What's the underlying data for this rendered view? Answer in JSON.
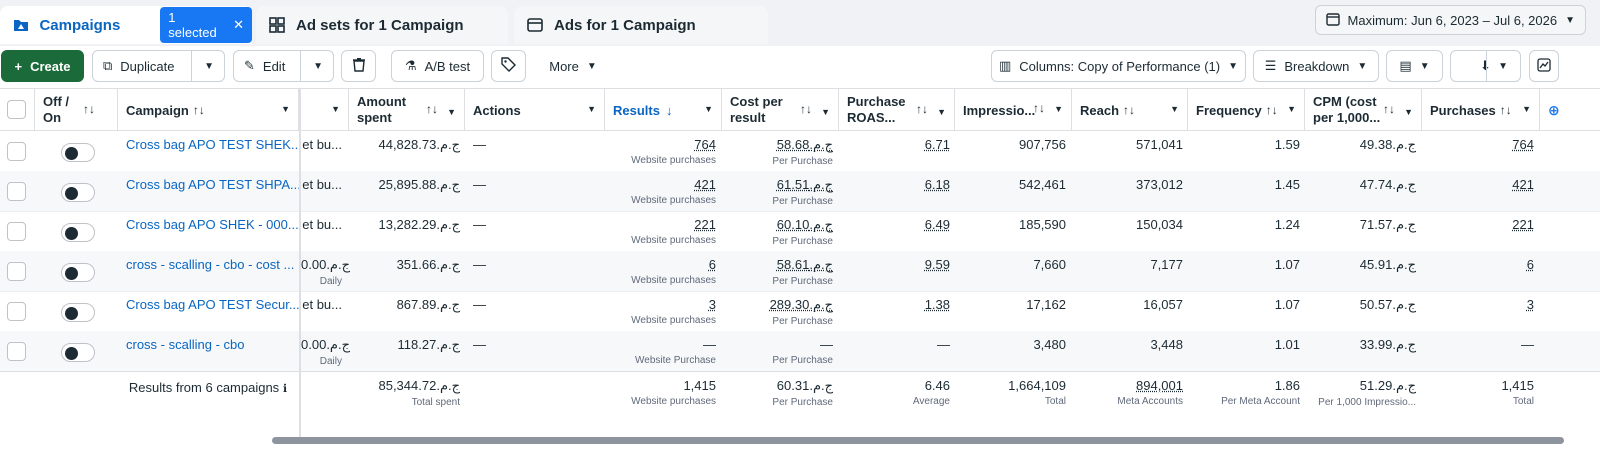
{
  "tabs": {
    "campaigns": "Campaigns",
    "selected": "1 selected",
    "adsets": "Ad sets for 1 Campaign",
    "ads": "Ads for 1 Campaign"
  },
  "date_range": "Maximum: Jun 6, 2023 – Jul 6, 2026",
  "toolbar": {
    "create": "Create",
    "duplicate": "Duplicate",
    "edit": "Edit",
    "ab_test": "A/B test",
    "more": "More",
    "columns": "Columns: Copy of Performance (1)",
    "breakdown": "Breakdown"
  },
  "headers": {
    "off_on": "Off / On",
    "campaign": "Campaign",
    "amount_spent": "Amount spent",
    "actions": "Actions",
    "results": "Results",
    "cost_per_result": "Cost per result",
    "purchase_roas": "Purchase ROAS...",
    "impressions": "Impressio...",
    "reach": "Reach",
    "frequency": "Frequency",
    "cpm": "CPM (cost per 1,000...",
    "purchases": "Purchases"
  },
  "rows": [
    {
      "campaign": "Cross bag APO TEST SHEK...",
      "budget": "et bu...",
      "budget_sub": "",
      "amount": "ج.م.‏44,828.73",
      "actions": "—",
      "results": "764",
      "results_sub": "Website purchases",
      "cpr": "ج.م.‏58.68",
      "cpr_sub": "Per Purchase",
      "roas": "6.71",
      "impressions": "907,756",
      "reach": "571,041",
      "frequency": "1.59",
      "cpm": "ج.م.‏49.38",
      "purchases": "764"
    },
    {
      "campaign": "Cross bag APO TEST SHPA...",
      "budget": "et bu...",
      "budget_sub": "",
      "amount": "ج.م.‏25,895.88",
      "actions": "—",
      "results": "421",
      "results_sub": "Website purchases",
      "cpr": "ج.م.‏61.51",
      "cpr_sub": "Per Purchase",
      "roas": "6.18",
      "impressions": "542,461",
      "reach": "373,012",
      "frequency": "1.45",
      "cpm": "ج.م.‏47.74",
      "purchases": "421"
    },
    {
      "campaign": "Cross bag APO SHEK - 000...",
      "budget": "et bu...",
      "budget_sub": "",
      "amount": "ج.م.‏13,282.29",
      "actions": "—",
      "results": "221",
      "results_sub": "Website purchases",
      "cpr": "ج.م.‏60.10",
      "cpr_sub": "Per Purchase",
      "roas": "6.49",
      "impressions": "185,590",
      "reach": "150,034",
      "frequency": "1.24",
      "cpm": "ج.م.‏71.57",
      "purchases": "221"
    },
    {
      "campaign": "cross - scalling - cbo - cost ...",
      "budget": "ج.م.‏0.00",
      "budget_sub": "Daily",
      "amount": "ج.م.‏351.66",
      "actions": "—",
      "results": "6",
      "results_sub": "Website purchases",
      "cpr": "ج.م.‏58.61",
      "cpr_sub": "Per Purchase",
      "roas": "9.59",
      "impressions": "7,660",
      "reach": "7,177",
      "frequency": "1.07",
      "cpm": "ج.م.‏45.91",
      "purchases": "6"
    },
    {
      "campaign": "Cross bag APO TEST Secur...",
      "budget": "et bu...",
      "budget_sub": "",
      "amount": "ج.م.‏867.89",
      "actions": "—",
      "results": "3",
      "results_sub": "Website purchases",
      "cpr": "ج.م.‏289.30",
      "cpr_sub": "Per Purchase",
      "roas": "1.38",
      "impressions": "17,162",
      "reach": "16,057",
      "frequency": "1.07",
      "cpm": "ج.م.‏50.57",
      "purchases": "3"
    },
    {
      "campaign": "cross - scalling - cbo",
      "budget": "ج.م.‏0.00",
      "budget_sub": "Daily",
      "amount": "ج.م.‏118.27",
      "actions": "—",
      "results": "—",
      "results_sub": "Website Purchase",
      "cpr": "—",
      "cpr_sub": "Per Purchase",
      "roas": "—",
      "impressions": "3,480",
      "reach": "3,448",
      "frequency": "1.01",
      "cpm": "ج.م.‏33.99",
      "purchases": "—"
    }
  ],
  "totals": {
    "label": "Results from 6 campaigns",
    "amount": "ج.م.‏85,344.72",
    "amount_sub": "Total spent",
    "results": "1,415",
    "results_sub": "Website purchases",
    "cpr": "ج.م.‏60.31",
    "cpr_sub": "Per Purchase",
    "roas": "6.46",
    "roas_sub": "Average",
    "impressions": "1,664,109",
    "impressions_sub": "Total",
    "reach": "894,001",
    "reach_sub": "Meta Accounts",
    "frequency": "1.86",
    "frequency_sub": "Per Meta Account",
    "cpm": "ج.م.‏51.29",
    "cpm_sub": "Per 1,000 Impressio...",
    "purchases": "1,415",
    "purchases_sub": "Total"
  }
}
